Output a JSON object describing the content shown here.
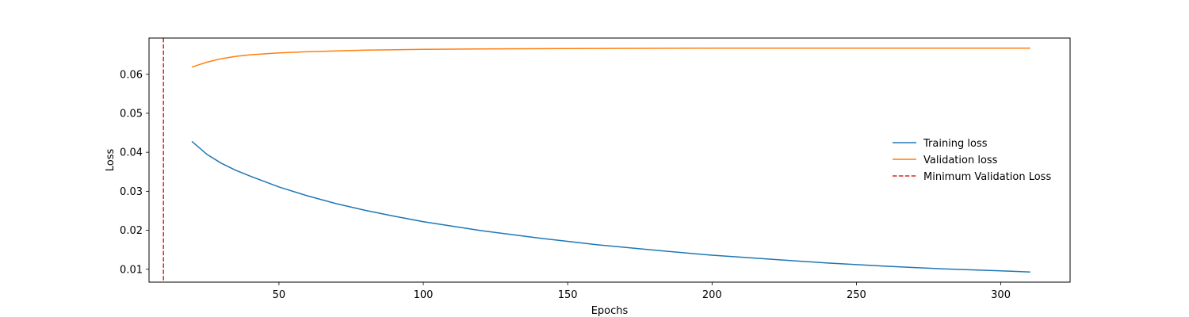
{
  "chart_data": {
    "type": "line",
    "title": "",
    "xlabel": "Epochs",
    "ylabel": "Loss",
    "xlim": [
      5,
      324
    ],
    "ylim": [
      0.0067,
      0.0693
    ],
    "xticks": [
      50,
      100,
      150,
      200,
      250,
      300
    ],
    "yticks": [
      0.01,
      0.02,
      0.03,
      0.04,
      0.05,
      0.06
    ],
    "ytick_labels": [
      "0.01",
      "0.02",
      "0.03",
      "0.04",
      "0.05",
      "0.06"
    ],
    "xtick_labels": [
      "50",
      "100",
      "150",
      "200",
      "250",
      "300"
    ],
    "grid": false,
    "legend_position": "center-right",
    "series": [
      {
        "name": "Training loss",
        "color": "#1f77b4",
        "style": "solid",
        "x": [
          20,
          25,
          30,
          35,
          40,
          50,
          60,
          70,
          80,
          90,
          100,
          120,
          140,
          160,
          180,
          200,
          220,
          240,
          260,
          280,
          300,
          310
        ],
        "values": [
          0.0427,
          0.0395,
          0.0372,
          0.0354,
          0.0339,
          0.0311,
          0.0288,
          0.0268,
          0.0251,
          0.0236,
          0.0222,
          0.0199,
          0.018,
          0.0163,
          0.0149,
          0.0136,
          0.0126,
          0.0116,
          0.0108,
          0.0101,
          0.0096,
          0.0093
        ]
      },
      {
        "name": "Validation loss",
        "color": "#ff7f0e",
        "style": "solid",
        "x": [
          20,
          25,
          30,
          35,
          40,
          50,
          60,
          70,
          80,
          100,
          120,
          150,
          200,
          250,
          300,
          310
        ],
        "values": [
          0.0619,
          0.0631,
          0.064,
          0.0646,
          0.065,
          0.0655,
          0.0658,
          0.066,
          0.0662,
          0.0664,
          0.0665,
          0.0666,
          0.0667,
          0.0667,
          0.0667,
          0.0667
        ]
      }
    ],
    "vlines": [
      {
        "name": "Minimum Validation Loss",
        "color": "#d62728",
        "style": "dashed",
        "x": 10
      }
    ]
  }
}
